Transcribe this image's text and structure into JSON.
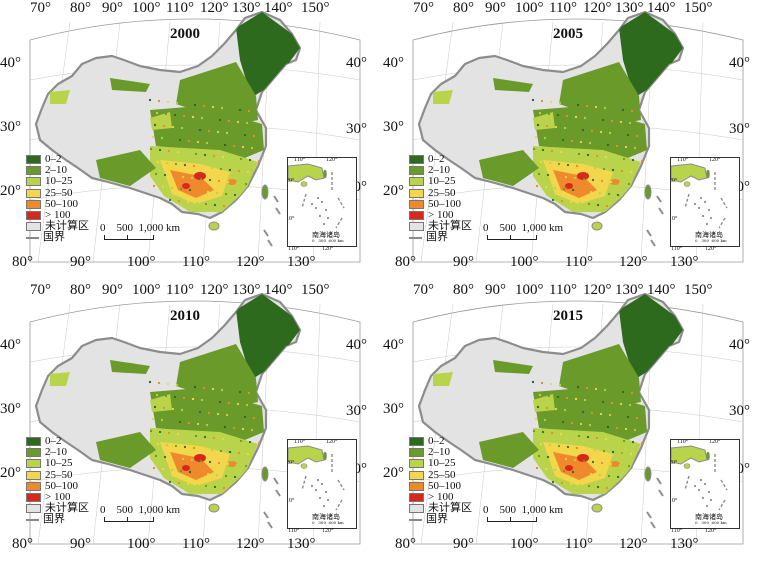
{
  "panels": [
    {
      "year": "2000"
    },
    {
      "year": "2005"
    },
    {
      "year": "2010"
    },
    {
      "year": "2015"
    }
  ],
  "top_longitude_labels": [
    "70°",
    "80°",
    "90°",
    "100°",
    "110°",
    "120°",
    "130°",
    "140°",
    "150°"
  ],
  "bottom_longitude_labels": [
    "80°",
    "90°",
    "100°",
    "110°",
    "120°",
    "130°"
  ],
  "left_latitude_labels": [
    "40°",
    "30°",
    "20°"
  ],
  "right_latitude_labels": [
    "40°",
    "30°",
    "20°"
  ],
  "legend": {
    "items": [
      {
        "label": "0–2",
        "color": "#2d6a1e"
      },
      {
        "label": "2–10",
        "color": "#6a9a2a"
      },
      {
        "label": "10–25",
        "color": "#b9d34a"
      },
      {
        "label": "25–50",
        "color": "#f2d64b"
      },
      {
        "label": "50–100",
        "color": "#ee8a2c"
      },
      {
        "label": "> 100",
        "color": "#d8281d"
      },
      {
        "label": "未计算区",
        "color": "#e3e3e3"
      }
    ],
    "boundary_label": "国界"
  },
  "scale_bar": {
    "labels": "0    500  1,000 km"
  },
  "inset": {
    "name": "南海诸岛",
    "lon_labels": [
      "110°",
      "120°"
    ],
    "lat_labels": [
      "20°",
      "10°"
    ],
    "scale_text": "0   300  600 km",
    "below_labels": [
      "110°",
      "120°"
    ]
  },
  "colors": {
    "not_calculated": "#e3e3e3",
    "boundary": "#8c8c8c",
    "graticule": "#9a9a9a"
  }
}
